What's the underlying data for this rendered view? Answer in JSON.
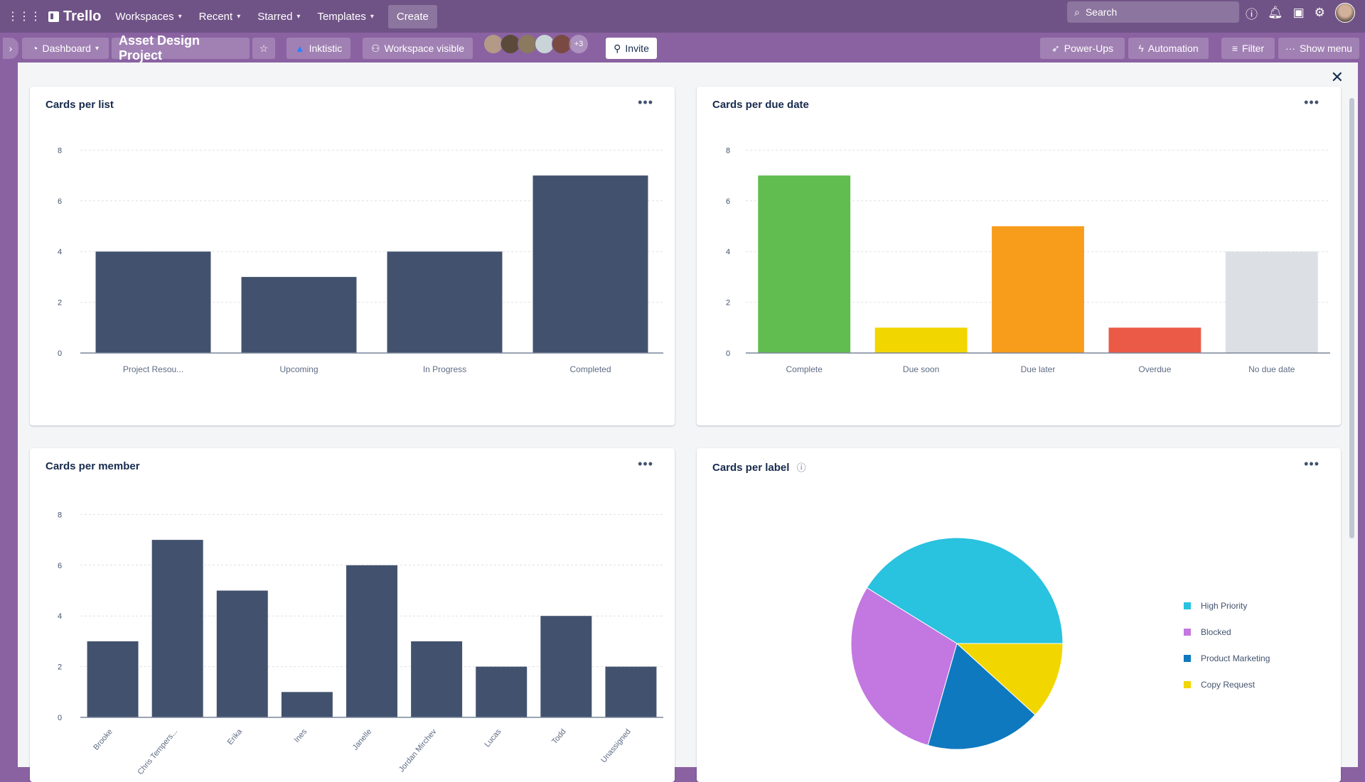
{
  "header": {
    "app_name": "Trello",
    "nav": [
      "Workspaces",
      "Recent",
      "Starred",
      "Templates"
    ],
    "create": "Create",
    "search_placeholder": "Search"
  },
  "board": {
    "view": "Dashboard",
    "title": "Asset Design Project",
    "workspace": "Inktistic",
    "visibility": "Workspace visible",
    "extra_members": "+3",
    "invite": "Invite",
    "power_ups": "Power-Ups",
    "automation": "Automation",
    "filter": "Filter",
    "show_menu": "Show menu"
  },
  "colors": {
    "bar": "#42526e",
    "accent": "#705386"
  },
  "chart_data": [
    {
      "type": "bar",
      "title": "Cards per list",
      "categories": [
        "Project Resou...",
        "Upcoming",
        "In Progress",
        "Completed"
      ],
      "values": [
        4,
        3,
        4,
        7
      ],
      "yticks": [
        0,
        2,
        4,
        6,
        8
      ],
      "ylim": [
        0,
        8
      ],
      "colors": [
        "#42526e"
      ]
    },
    {
      "type": "bar",
      "title": "Cards per due date",
      "categories": [
        "Complete",
        "Due soon",
        "Due later",
        "Overdue",
        "No due date"
      ],
      "values": [
        7,
        1,
        5,
        1,
        4
      ],
      "yticks": [
        0,
        2,
        4,
        6,
        8
      ],
      "ylim": [
        0,
        8
      ],
      "colors": [
        "#61bd4f",
        "#f2d600",
        "#f89c1c",
        "#eb5a46",
        "#dcdfe4"
      ]
    },
    {
      "type": "bar",
      "title": "Cards per member",
      "categories": [
        "Brooke",
        "Chris Tempers...",
        "Erika",
        "Ines",
        "Janelle",
        "Jordan Mirchev",
        "Lucas",
        "Todd",
        "Unassigned"
      ],
      "values": [
        3,
        7,
        5,
        1,
        6,
        3,
        2,
        4,
        2
      ],
      "yticks": [
        0,
        2,
        4,
        6,
        8
      ],
      "ylim": [
        0,
        8
      ],
      "colors": [
        "#42526e"
      ]
    },
    {
      "type": "pie",
      "title": "Cards per label",
      "labels": [
        "High Priority",
        "Blocked",
        "Product Marketing",
        "Copy Request"
      ],
      "values": [
        7,
        5,
        3,
        2
      ],
      "colors": [
        "#29c2df",
        "#c377e0",
        "#0f79bf",
        "#f2d600"
      ],
      "legend": "right"
    }
  ]
}
